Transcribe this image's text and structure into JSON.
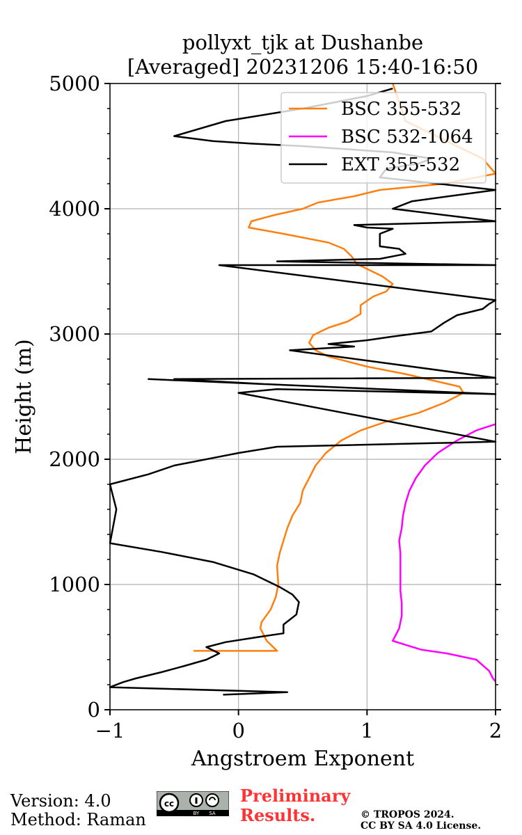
{
  "chart_data": {
    "type": "line",
    "title": "pollyxt_tjk at Dushanbe",
    "subtitle": "[Averaged] 20231206 15:40-16:50",
    "xlabel": "Angstroem Exponent",
    "ylabel": "Height (m)",
    "xlim": [
      -1,
      2
    ],
    "ylim": [
      0,
      5000
    ],
    "x_ticks": [
      -1,
      0,
      1,
      2
    ],
    "x_tick_labels": [
      "−1",
      "0",
      "1",
      "2"
    ],
    "y_ticks": [
      0,
      1000,
      2000,
      3000,
      4000,
      5000
    ],
    "y_tick_labels": [
      "0",
      "1000",
      "2000",
      "3000",
      "4000",
      "5000"
    ],
    "grid": true,
    "legend_position": "top-right",
    "series": [
      {
        "name": "BSC 355-532",
        "color": "#ff7f0e",
        "x": [
          -0.35,
          0.3,
          0.28,
          0.22,
          0.17,
          0.18,
          0.25,
          0.29,
          0.31,
          0.3,
          0.32,
          0.35,
          0.38,
          0.42,
          0.48,
          0.5,
          0.55,
          0.6,
          0.68,
          0.8,
          0.95,
          1.15,
          1.4,
          1.6,
          1.75,
          1.72,
          1.55,
          1.3,
          1.0,
          0.85,
          0.7,
          0.6,
          0.55,
          0.58,
          0.7,
          0.85,
          0.95,
          0.95,
          1.05,
          1.15,
          1.2,
          1.12,
          0.92,
          0.88,
          0.82,
          0.7,
          0.55,
          0.45,
          0.35,
          0.08,
          0.1,
          0.28,
          0.5,
          0.62,
          0.9,
          1.1,
          1.6,
          2.0,
          1.9,
          1.7,
          1.3,
          1.2
        ],
        "y": [
          470,
          470,
          490,
          550,
          650,
          700,
          800,
          900,
          1000,
          1150,
          1250,
          1350,
          1450,
          1550,
          1650,
          1750,
          1850,
          1950,
          2050,
          2150,
          2230,
          2300,
          2370,
          2450,
          2530,
          2580,
          2620,
          2680,
          2740,
          2780,
          2820,
          2870,
          2930,
          2990,
          3050,
          3100,
          3160,
          3230,
          3300,
          3340,
          3400,
          3460,
          3560,
          3620,
          3680,
          3730,
          3760,
          3780,
          3800,
          3850,
          3900,
          3950,
          4000,
          4050,
          4100,
          4150,
          4200,
          4280,
          4400,
          4500,
          4700,
          5000
        ]
      },
      {
        "name": "BSC 532-1064",
        "color": "#ff00ff",
        "x": [
          2.0,
          1.98,
          1.95,
          1.85,
          1.62,
          1.42,
          1.2,
          1.25,
          1.27,
          1.27,
          1.26,
          1.26,
          1.26,
          1.26,
          1.25,
          1.27,
          1.28,
          1.3,
          1.33,
          1.38,
          1.45,
          1.55,
          1.7,
          1.85,
          2.0
        ],
        "y": [
          225,
          250,
          310,
          400,
          450,
          480,
          550,
          650,
          750,
          850,
          950,
          1050,
          1150,
          1250,
          1350,
          1450,
          1550,
          1650,
          1750,
          1850,
          1950,
          2050,
          2150,
          2230,
          2280
        ]
      },
      {
        "name": "EXT 355-532",
        "color": "#000000",
        "x": [
          -0.12,
          0.38,
          -1.0,
          -0.9,
          -0.8,
          -0.6,
          -0.42,
          -0.25,
          -0.15,
          -0.25,
          -0.1,
          0.15,
          0.35,
          0.35,
          0.45,
          0.47,
          0.42,
          0.32,
          0.12,
          -0.2,
          -0.6,
          -1.0,
          -0.95,
          -1.0,
          -0.7,
          -0.5,
          -0.35,
          -0.2,
          0.0,
          0.3,
          2.0,
          0.0,
          0.3,
          2.0,
          -0.7,
          0.2,
          -0.5,
          2.0,
          0.4,
          0.9,
          0.7,
          1.0,
          1.2,
          1.5,
          1.6,
          1.7,
          1.9,
          1.95,
          2.0,
          -0.15,
          2.0,
          0.3,
          1.1,
          1.3,
          1.25,
          1.1,
          1.1,
          1.2,
          1.0,
          0.9,
          2.0,
          1.2,
          1.35,
          2.0,
          1.1,
          1.15,
          1.4,
          1.5,
          1.2,
          0.5,
          0.1,
          -0.2,
          -0.5,
          -0.1,
          0.5,
          1.0,
          1.2
        ],
        "y": [
          120,
          140,
          180,
          220,
          250,
          300,
          350,
          400,
          450,
          500,
          540,
          580,
          610,
          680,
          760,
          860,
          920,
          980,
          1080,
          1180,
          1260,
          1330,
          1600,
          1800,
          1880,
          1950,
          1980,
          2010,
          2050,
          2100,
          2140,
          2530,
          2560,
          2520,
          2640,
          2600,
          2640,
          2650,
          2870,
          2900,
          2920,
          2950,
          2980,
          3020,
          3090,
          3150,
          3200,
          3240,
          3270,
          3550,
          3550,
          3580,
          3600,
          3640,
          3680,
          3700,
          3800,
          3840,
          3850,
          3870,
          3900,
          4000,
          4060,
          4150,
          4250,
          4320,
          4360,
          4400,
          4450,
          4500,
          4520,
          4540,
          4580,
          4700,
          4800,
          4900,
          4960
        ]
      }
    ]
  },
  "footer": {
    "version": "Version: 4.0",
    "method": "Method: Raman",
    "preliminary_1": "Preliminary",
    "preliminary_2": "Results.",
    "copyright_1": "© TROPOS 2024.",
    "copyright_2": "CC BY SA 4.0 License.",
    "badge_cc": "cc",
    "badge_by": "BY",
    "badge_sa": "SA"
  }
}
